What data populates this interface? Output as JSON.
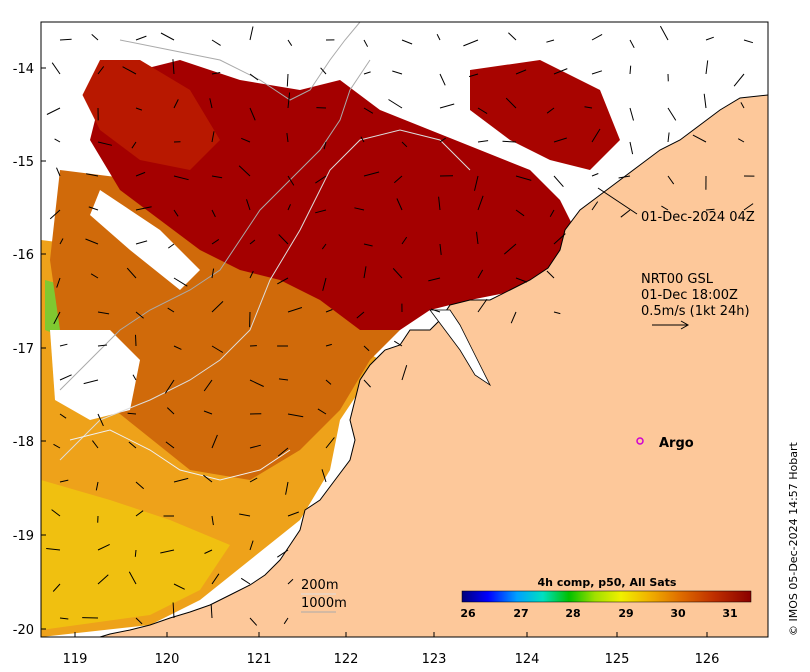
{
  "axes": {
    "lat_labels": [
      "-14",
      "-15",
      "-16",
      "-17",
      "-18",
      "-19",
      "-20"
    ],
    "lon_labels": [
      "119",
      "120",
      "121",
      "122",
      "123",
      "124",
      "125",
      "126"
    ]
  },
  "annotations": {
    "sst_time": "01-Dec-2024 04Z",
    "currents_source": "NRT00 GSL",
    "currents_time": "01-Dec 18:00Z",
    "currents_scale": "0.5m/s (1kt 24h)",
    "argo_label": "Argo"
  },
  "isobaths": {
    "shallow": "200m",
    "deep": "1000m"
  },
  "colorbar": {
    "title": "4h comp, p50, All Sats",
    "ticks": [
      "26",
      "27",
      "28",
      "29",
      "30",
      "31"
    ],
    "range": [
      26,
      31.5
    ]
  },
  "credit": "© IMOS 05-Dec-2024 14:57 Hobart",
  "colors": {
    "land": "#fdc89a",
    "warm": "#a40000",
    "cool": "#0000a0",
    "argo": "#d000d0"
  }
}
